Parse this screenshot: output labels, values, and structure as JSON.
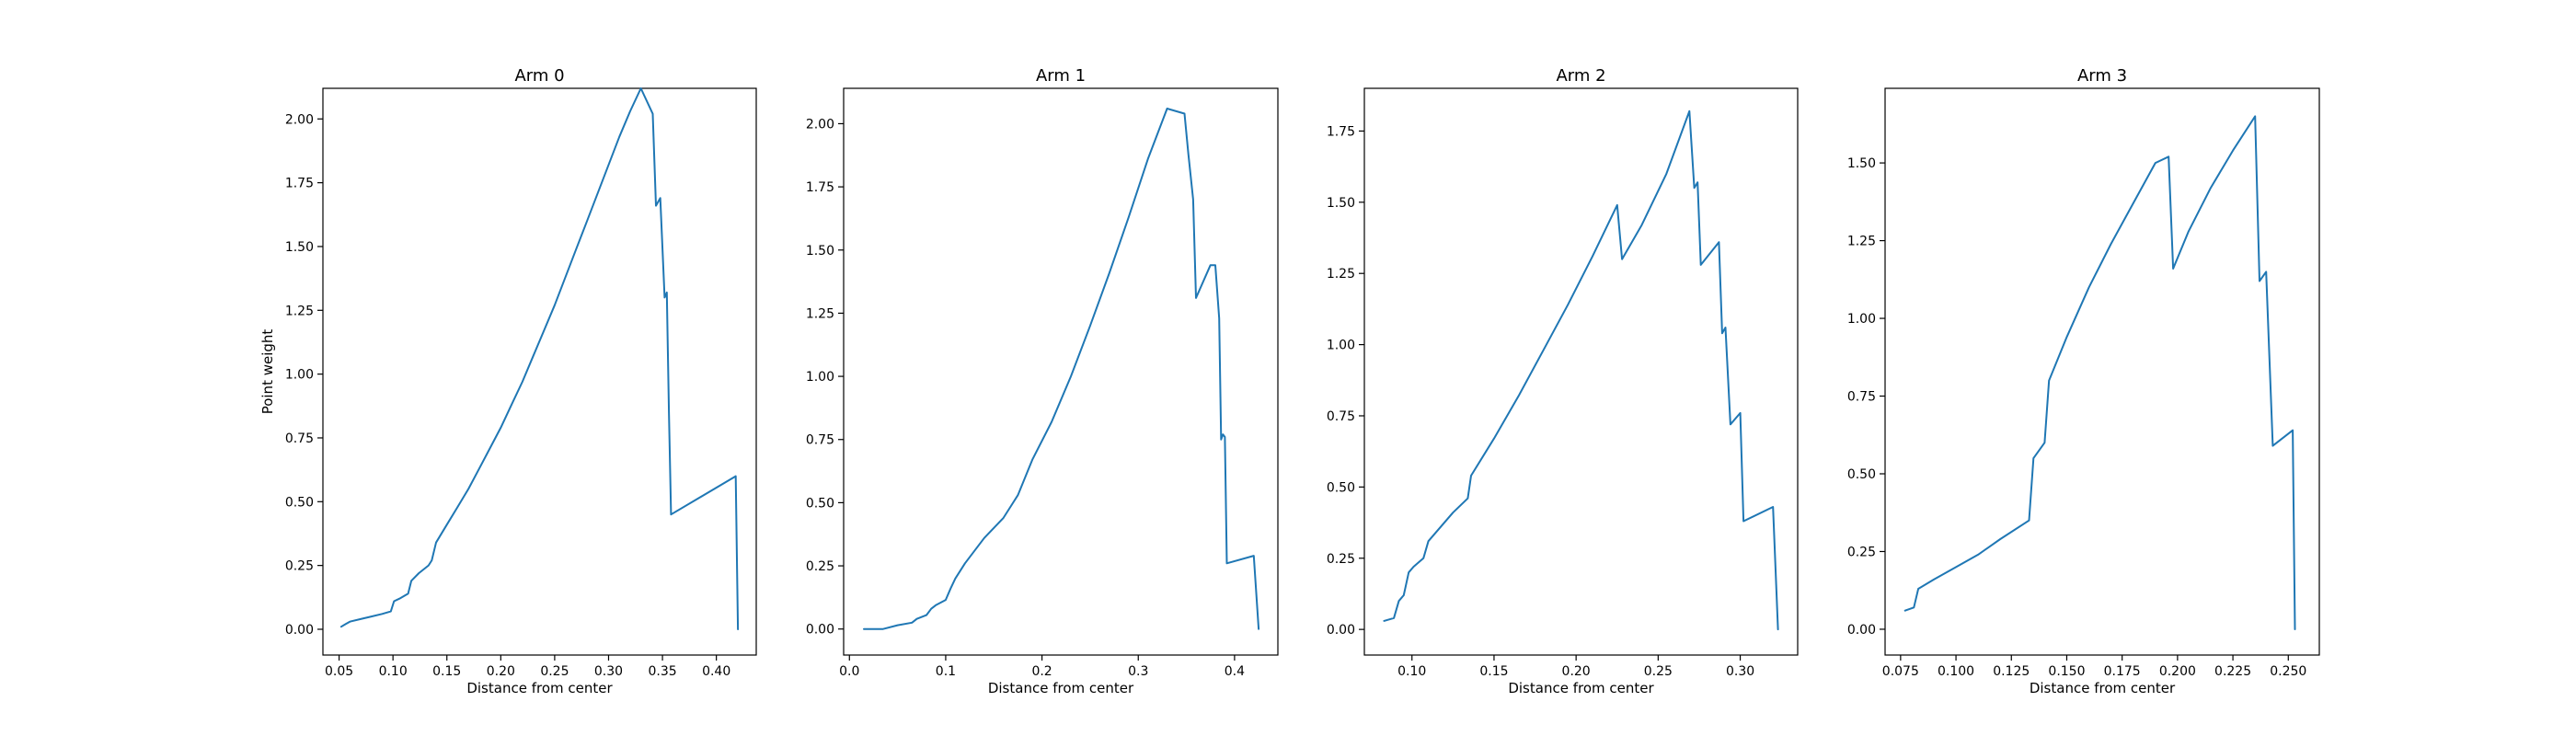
{
  "colors": {
    "line": "#1f77b4",
    "axes": "#000000",
    "background": "#ffffff"
  },
  "chart_data": [
    {
      "type": "line",
      "title": "Arm 0",
      "xlabel": "Distance from center",
      "ylabel": "Point weight",
      "xlim": [
        0.035,
        0.437
      ],
      "ylim": [
        -0.101,
        2.12
      ],
      "xticks": [
        "0.05",
        "0.10",
        "0.15",
        "0.20",
        "0.25",
        "0.30",
        "0.35",
        "0.40"
      ],
      "yticks": [
        "0.00",
        "0.25",
        "0.50",
        "0.75",
        "1.00",
        "1.25",
        "1.50",
        "1.75",
        "2.00"
      ],
      "grid": false,
      "series": [
        {
          "x": [
            0.052,
            0.056,
            0.06,
            0.07,
            0.08,
            0.09,
            0.098,
            0.101,
            0.106,
            0.114,
            0.117,
            0.124,
            0.133,
            0.136,
            0.14,
            0.15,
            0.16,
            0.17,
            0.18,
            0.19,
            0.2,
            0.21,
            0.22,
            0.23,
            0.24,
            0.25,
            0.26,
            0.27,
            0.28,
            0.29,
            0.3,
            0.31,
            0.32,
            0.33,
            0.341,
            0.344,
            0.348,
            0.352,
            0.354,
            0.356,
            0.358,
            0.418,
            0.42
          ],
          "y": [
            0.01,
            0.02,
            0.03,
            0.04,
            0.05,
            0.06,
            0.07,
            0.11,
            0.12,
            0.14,
            0.19,
            0.22,
            0.25,
            0.27,
            0.34,
            0.41,
            0.48,
            0.55,
            0.63,
            0.71,
            0.79,
            0.88,
            0.97,
            1.07,
            1.17,
            1.27,
            1.38,
            1.49,
            1.6,
            1.71,
            1.82,
            1.93,
            2.03,
            2.12,
            2.02,
            1.66,
            1.69,
            1.3,
            1.32,
            0.85,
            0.45,
            0.6,
            0.0
          ]
        }
      ]
    },
    {
      "type": "line",
      "title": "Arm 1",
      "xlabel": "Distance from center",
      "ylabel": "",
      "xlim": [
        -0.006,
        0.445
      ],
      "ylim": [
        -0.103,
        2.14
      ],
      "xticks": [
        "0.0",
        "0.1",
        "0.2",
        "0.3",
        "0.4"
      ],
      "yticks": [
        "0.00",
        "0.25",
        "0.50",
        "0.75",
        "1.00",
        "1.25",
        "1.50",
        "1.75",
        "2.00"
      ],
      "grid": false,
      "series": [
        {
          "x": [
            0.015,
            0.035,
            0.05,
            0.065,
            0.07,
            0.08,
            0.085,
            0.09,
            0.1,
            0.105,
            0.11,
            0.12,
            0.14,
            0.16,
            0.17,
            0.175,
            0.19,
            0.21,
            0.23,
            0.25,
            0.27,
            0.29,
            0.31,
            0.33,
            0.348,
            0.352,
            0.357,
            0.36,
            0.375,
            0.38,
            0.384,
            0.386,
            0.388,
            0.39,
            0.392,
            0.42,
            0.425
          ],
          "y": [
            0.0,
            0.0,
            0.015,
            0.025,
            0.04,
            0.055,
            0.08,
            0.095,
            0.115,
            0.16,
            0.2,
            0.26,
            0.36,
            0.44,
            0.5,
            0.53,
            0.67,
            0.82,
            1.0,
            1.2,
            1.41,
            1.63,
            1.86,
            2.06,
            2.04,
            1.88,
            1.7,
            1.31,
            1.44,
            1.44,
            1.23,
            0.75,
            0.77,
            0.76,
            0.26,
            0.29,
            0.0
          ]
        }
      ]
    },
    {
      "type": "line",
      "title": "Arm 2",
      "xlabel": "Distance from center",
      "ylabel": "",
      "xlim": [
        0.071,
        0.335
      ],
      "ylim": [
        -0.09,
        1.9
      ],
      "xticks": [
        "0.10",
        "0.15",
        "0.20",
        "0.25",
        "0.30"
      ],
      "yticks": [
        "0.00",
        "0.25",
        "0.50",
        "0.75",
        "1.00",
        "1.25",
        "1.50",
        "1.75"
      ],
      "grid": false,
      "series": [
        {
          "x": [
            0.083,
            0.089,
            0.092,
            0.095,
            0.098,
            0.101,
            0.107,
            0.11,
            0.125,
            0.134,
            0.136,
            0.15,
            0.165,
            0.18,
            0.195,
            0.21,
            0.225,
            0.228,
            0.24,
            0.255,
            0.269,
            0.272,
            0.274,
            0.276,
            0.287,
            0.289,
            0.291,
            0.294,
            0.3,
            0.302,
            0.32,
            0.323
          ],
          "y": [
            0.03,
            0.04,
            0.1,
            0.12,
            0.2,
            0.22,
            0.25,
            0.31,
            0.41,
            0.46,
            0.54,
            0.67,
            0.82,
            0.98,
            1.14,
            1.31,
            1.49,
            1.3,
            1.42,
            1.6,
            1.82,
            1.55,
            1.57,
            1.28,
            1.36,
            1.04,
            1.06,
            0.72,
            0.76,
            0.38,
            0.43,
            0.0
          ]
        }
      ]
    },
    {
      "type": "line",
      "title": "Arm 3",
      "xlabel": "Distance from center",
      "ylabel": "",
      "xlim": [
        0.068,
        0.264
      ],
      "ylim": [
        -0.083,
        1.74
      ],
      "xticks": [
        "0.075",
        "0.100",
        "0.125",
        "0.150",
        "0.175",
        "0.200",
        "0.225",
        "0.250"
      ],
      "yticks": [
        "0.00",
        "0.25",
        "0.50",
        "0.75",
        "1.00",
        "1.25",
        "1.50"
      ],
      "grid": false,
      "series": [
        {
          "x": [
            0.077,
            0.081,
            0.083,
            0.09,
            0.1,
            0.11,
            0.12,
            0.133,
            0.135,
            0.14,
            0.142,
            0.15,
            0.16,
            0.17,
            0.18,
            0.19,
            0.196,
            0.198,
            0.205,
            0.215,
            0.225,
            0.235,
            0.237,
            0.24,
            0.243,
            0.252,
            0.253
          ],
          "y": [
            0.06,
            0.07,
            0.13,
            0.16,
            0.2,
            0.24,
            0.29,
            0.35,
            0.55,
            0.6,
            0.8,
            0.94,
            1.1,
            1.24,
            1.37,
            1.5,
            1.52,
            1.16,
            1.28,
            1.42,
            1.54,
            1.65,
            1.12,
            1.15,
            0.59,
            0.64,
            0.0
          ]
        }
      ]
    }
  ]
}
